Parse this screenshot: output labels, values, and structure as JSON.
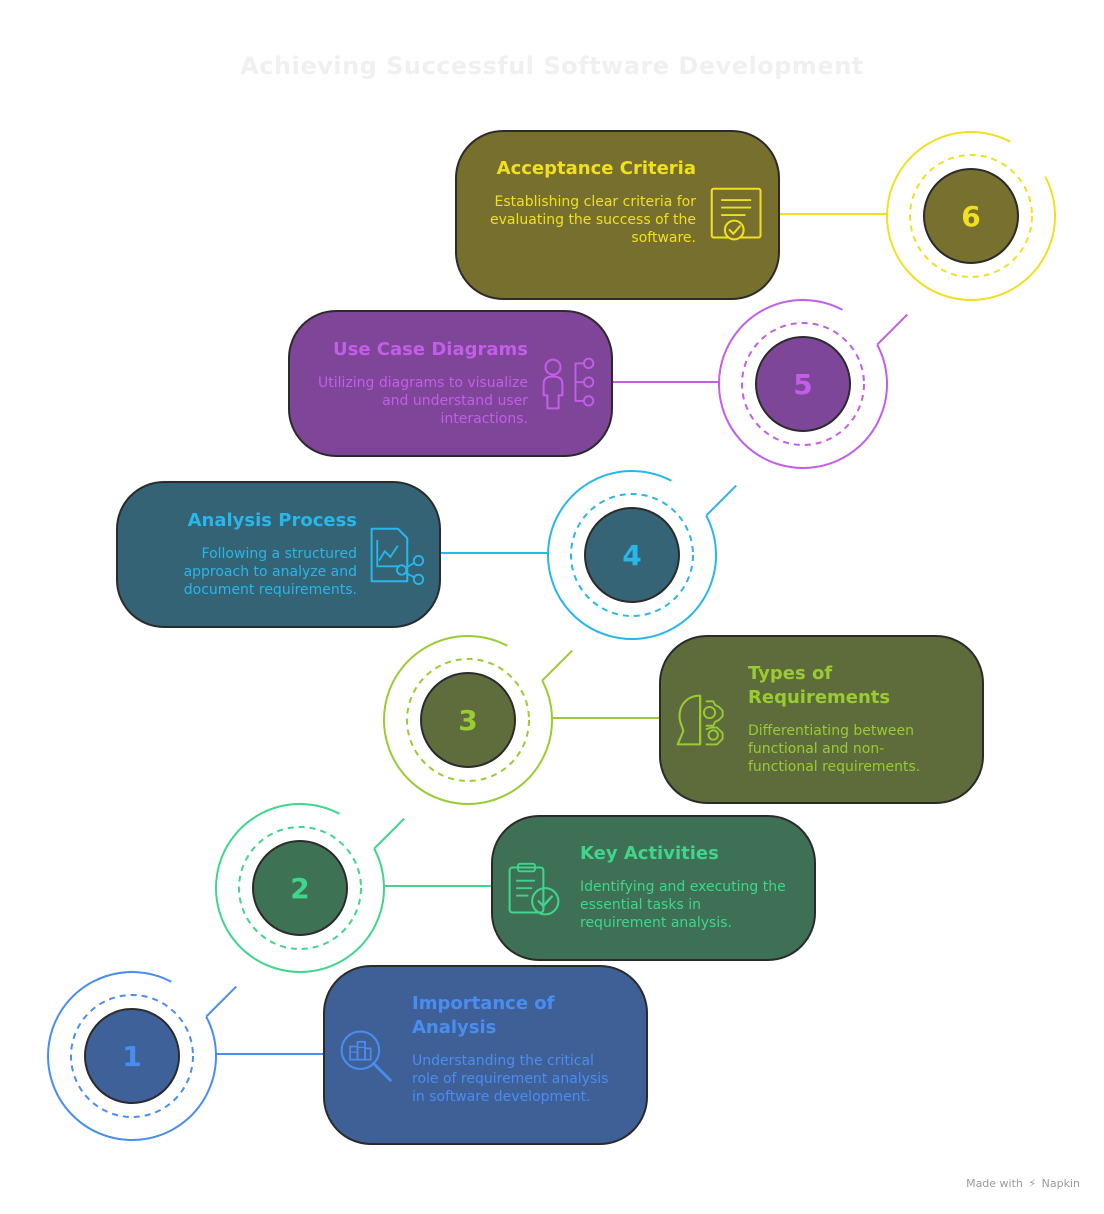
{
  "title": "Achieving Successful Software Development",
  "steps": [
    {
      "number": "1",
      "title": "Importance of Analysis",
      "description": "Understanding the critical role of requirement analysis in software development.",
      "icon": "analysis-magnifier-icon",
      "accent": "#4a8df0",
      "card": "#3f6096",
      "dot": "#3e6199"
    },
    {
      "number": "2",
      "title": "Key Activities",
      "description": "Identifying and executing the essential tasks in requirement analysis.",
      "icon": "clipboard-check-icon",
      "accent": "#3fd68c",
      "card": "#3e7055",
      "dot": "#3e7254"
    },
    {
      "number": "3",
      "title": "Types of Requirements",
      "description": "Differentiating between functional and non-functional requirements.",
      "icon": "head-gear-icon",
      "accent": "#99cc33",
      "card": "#5e6b3a",
      "dot": "#5f6c3c"
    },
    {
      "number": "4",
      "title": "Analysis Process",
      "description": "Following a structured approach to analyze and document requirements.",
      "icon": "chart-share-document-icon",
      "accent": "#29b6e8",
      "card": "#336375",
      "dot": "#346476"
    },
    {
      "number": "5",
      "title": "Use Case Diagrams",
      "description": "Utilizing diagrams to visualize and understand user interactions.",
      "icon": "user-network-icon",
      "accent": "#c35ee8",
      "card": "#7e4598",
      "dot": "#7e4698"
    },
    {
      "number": "6",
      "title": "Acceptance Criteria",
      "description": "Establishing clear criteria for evaluating the success of the software.",
      "icon": "certificate-check-icon",
      "accent": "#f0e020",
      "card": "#776f2e",
      "dot": "#77702e"
    }
  ],
  "footer": {
    "made_with": "Made with",
    "brand": "Napkin"
  }
}
